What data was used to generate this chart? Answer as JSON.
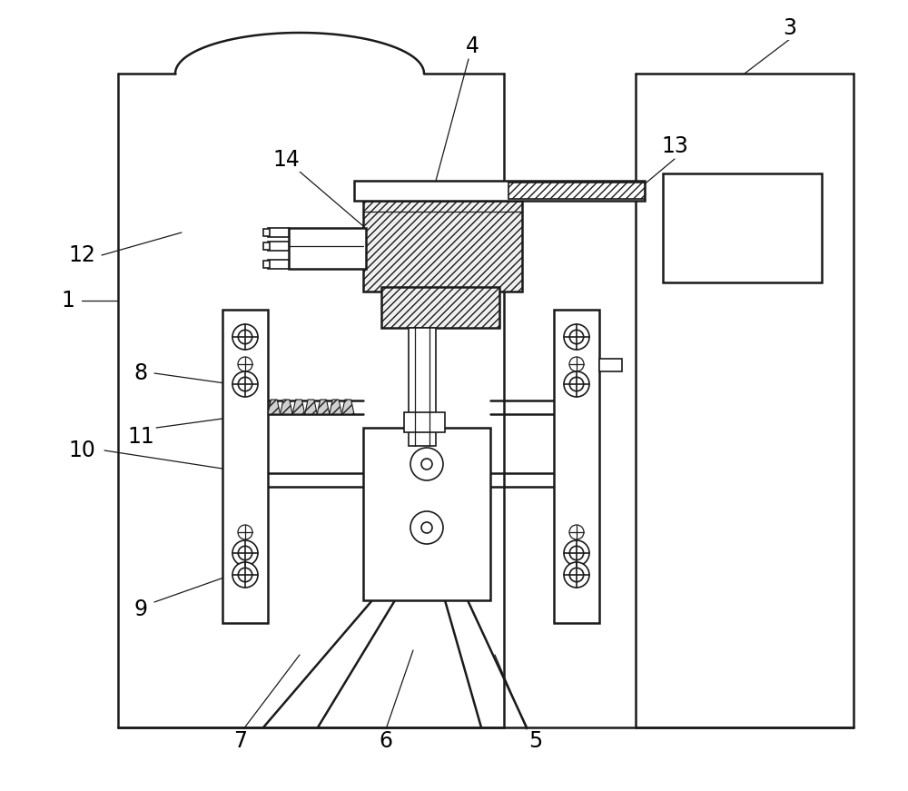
{
  "bg_color": "#ffffff",
  "line_color": "#1a1a1a",
  "fig_width": 10.0,
  "fig_height": 8.71,
  "dpi": 100,
  "label_color": "#000000"
}
